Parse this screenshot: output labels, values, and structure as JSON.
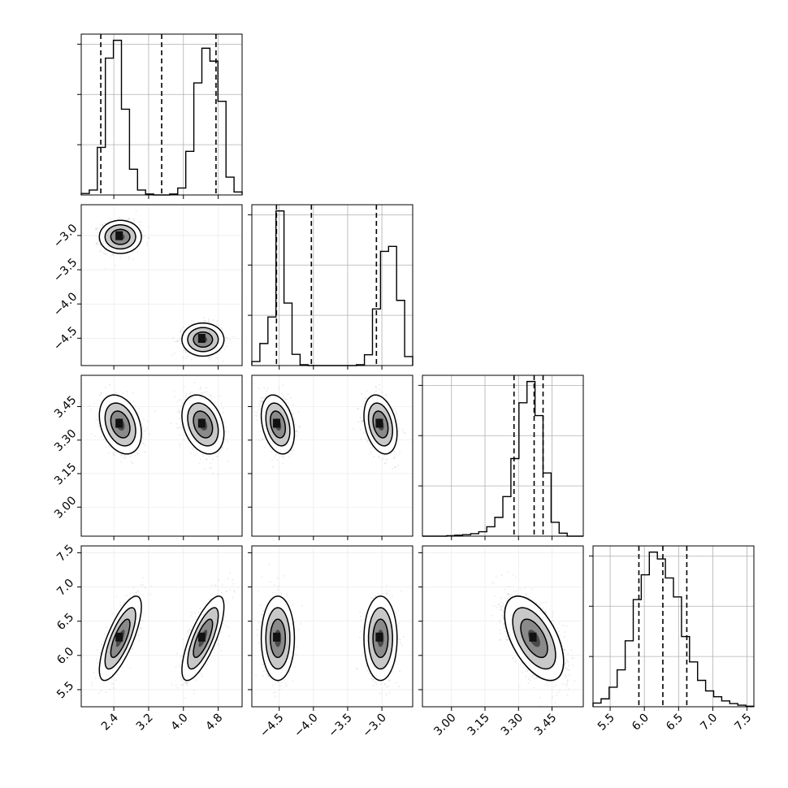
{
  "chart_data": {
    "type": "corner",
    "parameters": [
      {
        "id": "p0",
        "range": [
          1.65,
          5.35
        ],
        "ticks": [
          2.4,
          3.2,
          4.0,
          4.8
        ],
        "tick_labels": [
          "2.4",
          "3.2",
          "4.0",
          "4.8"
        ],
        "quantiles": [
          2.1,
          3.5,
          4.75
        ],
        "hist": {
          "bin_edges": [
            1.65,
            1.835,
            2.02,
            2.205,
            2.39,
            2.575,
            2.76,
            2.945,
            3.13,
            3.315,
            3.5,
            3.685,
            3.87,
            4.055,
            4.24,
            4.425,
            4.61,
            4.795,
            4.98,
            5.165,
            5.35
          ],
          "counts": [
            30,
            100,
            960,
            2760,
            3120,
            1730,
            520,
            100,
            20,
            0,
            0,
            20,
            140,
            880,
            2260,
            2960,
            2700,
            1890,
            360,
            60
          ]
        }
      },
      {
        "id": "p1",
        "range": [
          -4.9,
          -2.55
        ],
        "ticks": [
          -4.5,
          -4.0,
          -3.5,
          -3.0
        ],
        "tick_labels": [
          "−4.5",
          "−4.0",
          "−3.5",
          "−3.0"
        ],
        "quantiles": [
          -4.54,
          -4.03,
          -3.08
        ],
        "hist": {
          "bin_edges": [
            -4.9,
            -4.7825,
            -4.665,
            -4.5475,
            -4.43,
            -4.3125,
            -4.195,
            -4.0775,
            -3.96,
            -3.8425,
            -3.725,
            -3.6075,
            -3.49,
            -3.3725,
            -3.255,
            -3.1375,
            -3.02,
            -2.9025,
            -2.785,
            -2.6675,
            -2.55
          ],
          "counts": [
            90,
            490,
            1080,
            3440,
            1390,
            250,
            20,
            0,
            0,
            0,
            0,
            0,
            0,
            20,
            240,
            1260,
            2540,
            2650,
            1450,
            200
          ]
        }
      },
      {
        "id": "p2",
        "range": [
          2.87,
          3.59
        ],
        "ticks": [
          3.0,
          3.15,
          3.3,
          3.45
        ],
        "tick_labels": [
          "3.00",
          "3.15",
          "3.30",
          "3.45"
        ],
        "quantiles": [
          3.28,
          3.37,
          3.41
        ],
        "hist": {
          "bin_edges": [
            2.87,
            2.906,
            2.942,
            2.978,
            3.014,
            3.05,
            3.086,
            3.122,
            3.158,
            3.194,
            3.23,
            3.266,
            3.302,
            3.338,
            3.374,
            3.41,
            3.446,
            3.482,
            3.518,
            3.554,
            3.59
          ],
          "counts": [
            0,
            0,
            0,
            10,
            20,
            30,
            50,
            90,
            190,
            380,
            800,
            1570,
            2700,
            3130,
            2440,
            1280,
            280,
            60,
            0,
            0
          ]
        }
      },
      {
        "id": "p3",
        "range": [
          5.25,
          7.6
        ],
        "ticks": [
          5.5,
          6.0,
          6.5,
          7.0,
          7.5
        ],
        "tick_labels": [
          "5.5",
          "6.0",
          "6.5",
          "7.0",
          "7.5"
        ],
        "quantiles": [
          5.92,
          6.27,
          6.62
        ],
        "hist": {
          "bin_edges": [
            5.25,
            5.3675,
            5.485,
            5.6025,
            5.72,
            5.8375,
            5.955,
            6.0725,
            6.19,
            6.3075,
            6.425,
            6.5425,
            6.66,
            6.7775,
            6.895,
            7.0125,
            7.13,
            7.2475,
            7.365,
            7.4825,
            7.6
          ],
          "counts": [
            70,
            150,
            370,
            700,
            1250,
            2030,
            2500,
            2930,
            2800,
            2440,
            2080,
            1330,
            850,
            500,
            300,
            190,
            110,
            60,
            30,
            10
          ]
        }
      }
    ],
    "modes": [
      {
        "weight": 0.5,
        "mean": [
          2.55,
          -3.02,
          3.37,
          6.25
        ],
        "sd": [
          0.22,
          0.11,
          0.06,
          0.28
        ],
        "corr": [
          [
            1,
            0,
            -0.3,
            0.75
          ],
          [
            0,
            1,
            -0.3,
            0
          ],
          [
            -0.3,
            -0.3,
            1,
            -0.55
          ],
          [
            0.75,
            0,
            -0.55,
            1
          ]
        ]
      },
      {
        "weight": 0.5,
        "mean": [
          4.45,
          -4.52,
          3.37,
          6.25
        ],
        "sd": [
          0.22,
          0.11,
          0.06,
          0.28
        ],
        "corr": [
          [
            1,
            0,
            -0.3,
            0.75
          ],
          [
            0,
            1,
            -0.3,
            0
          ],
          [
            -0.3,
            -0.3,
            1,
            -0.55
          ],
          [
            0.75,
            0,
            -0.55,
            1
          ]
        ]
      }
    ],
    "contour_sigmas": [
      1.0,
      1.6,
      2.2
    ],
    "grid": true,
    "title": "",
    "xlabel": "",
    "ylabel": ""
  }
}
